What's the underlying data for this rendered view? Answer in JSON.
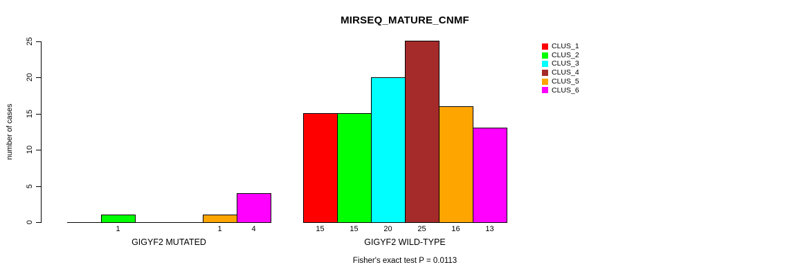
{
  "chart_data": {
    "type": "bar",
    "title": "MIRSEQ_MATURE_CNMF",
    "ylabel": "number of cases",
    "ylim": [
      0,
      25
    ],
    "yticks": [
      0,
      5,
      10,
      15,
      20,
      25
    ],
    "grid": false,
    "legend_position": "right",
    "categories": [
      "GIGYF2 MUTATED",
      "GIGYF2 WILD-TYPE"
    ],
    "series": [
      {
        "name": "CLUS_1",
        "color": "#FF0000",
        "values": [
          0,
          15
        ]
      },
      {
        "name": "CLUS_2",
        "color": "#00FF00",
        "values": [
          1,
          15
        ]
      },
      {
        "name": "CLUS_3",
        "color": "#00FFFF",
        "values": [
          0,
          20
        ]
      },
      {
        "name": "CLUS_4",
        "color": "#A52A2A",
        "values": [
          0,
          25
        ]
      },
      {
        "name": "CLUS_5",
        "color": "#FFA500",
        "values": [
          1,
          16
        ]
      },
      {
        "name": "CLUS_6",
        "color": "#FF00FF",
        "values": [
          4,
          13
        ]
      }
    ],
    "groups": [
      {
        "label": "GIGYF2 MUTATED",
        "values": [
          0,
          1,
          0,
          0,
          1,
          4
        ],
        "bar_labels": [
          "",
          "1",
          "",
          "",
          "1",
          "4"
        ]
      },
      {
        "label": "GIGYF2 WILD-TYPE",
        "values": [
          15,
          15,
          20,
          25,
          16,
          13
        ],
        "bar_labels": [
          "15",
          "15",
          "20",
          "25",
          "16",
          "13"
        ]
      }
    ],
    "annotation": "Fisher's exact test P = 0.0113",
    "colors": {
      "background": "#FFFFFF",
      "axis": "#000000",
      "text": "#000000"
    }
  }
}
